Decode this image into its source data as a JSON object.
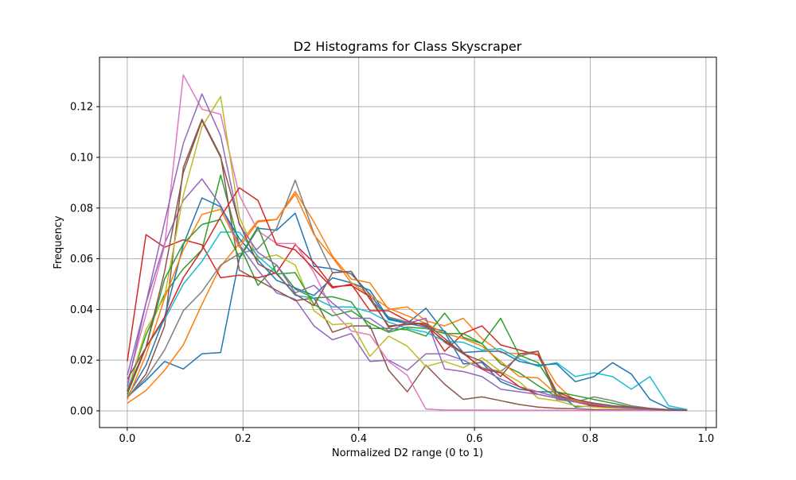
{
  "chart_data": {
    "type": "line",
    "title": "D2 Histograms for Class Skyscraper",
    "xlabel": "Normalized D2 range (0 to 1)",
    "ylabel": "Frequency",
    "xlim": [
      -0.048,
      1.018
    ],
    "ylim": [
      -0.0066,
      0.1395
    ],
    "xticks": [
      0.0,
      0.2,
      0.4,
      0.6,
      0.8,
      1.0
    ],
    "xtick_labels": [
      "0.0",
      "0.2",
      "0.4",
      "0.6",
      "0.8",
      "1.0"
    ],
    "yticks": [
      0.0,
      0.02,
      0.04,
      0.06,
      0.08,
      0.1,
      0.12
    ],
    "ytick_labels": [
      "0.00",
      "0.02",
      "0.04",
      "0.06",
      "0.08",
      "0.10",
      "0.12"
    ],
    "grid": true,
    "legend": "none",
    "x": [
      0.0,
      0.0323,
      0.0645,
      0.0968,
      0.129,
      0.1613,
      0.1935,
      0.2258,
      0.2581,
      0.2903,
      0.3226,
      0.3548,
      0.3871,
      0.4194,
      0.4516,
      0.4839,
      0.5161,
      0.5484,
      0.5806,
      0.6129,
      0.6452,
      0.6774,
      0.7097,
      0.7419,
      0.7742,
      0.8065,
      0.8387,
      0.871,
      0.9032,
      0.9355,
      0.9677
    ],
    "series": [
      {
        "color": "#1f77b4",
        "values": [
          0.0055,
          0.012,
          0.0195,
          0.0165,
          0.0225,
          0.023,
          0.06,
          0.072,
          0.0712,
          0.078,
          0.057,
          0.056,
          0.054,
          0.046,
          0.036,
          0.0345,
          0.0405,
          0.031,
          0.0185,
          0.019,
          0.0115,
          0.0085,
          0.0075,
          0.0075,
          0.0015,
          0.002,
          0.001,
          0.001,
          0.0005,
          0.0003,
          0.0002
        ]
      },
      {
        "color": "#ff7f0e",
        "values": [
          0.003,
          0.008,
          0.016,
          0.026,
          0.042,
          0.057,
          0.066,
          0.075,
          0.0755,
          0.0865,
          0.0745,
          0.061,
          0.052,
          0.0505,
          0.04,
          0.041,
          0.0355,
          0.0335,
          0.0365,
          0.0285,
          0.023,
          0.0225,
          0.0225,
          0.0105,
          0.0035,
          0.002,
          0.0015,
          0.001,
          0.0005,
          0.0003,
          0.0002
        ]
      },
      {
        "color": "#2ca02c",
        "values": [
          0.008,
          0.03,
          0.046,
          0.056,
          0.0635,
          0.093,
          0.0655,
          0.0495,
          0.0575,
          0.048,
          0.0445,
          0.045,
          0.043,
          0.0325,
          0.0325,
          0.032,
          0.0295,
          0.0385,
          0.029,
          0.0265,
          0.0185,
          0.015,
          0.01,
          0.0055,
          0.004,
          0.003,
          0.002,
          0.001,
          0.0005,
          0.0003,
          0.0002
        ]
      },
      {
        "color": "#d62728",
        "values": [
          0.0195,
          0.0695,
          0.0645,
          0.0675,
          0.0655,
          0.0525,
          0.0535,
          0.0525,
          0.0545,
          0.0655,
          0.0585,
          0.049,
          0.0495,
          0.045,
          0.033,
          0.0345,
          0.0345,
          0.0235,
          0.0305,
          0.0335,
          0.026,
          0.024,
          0.022,
          0.0075,
          0.0045,
          0.0025,
          0.0015,
          0.001,
          0.0005,
          0.0003,
          0.0002
        ]
      },
      {
        "color": "#9467bd",
        "values": [
          0.014,
          0.0425,
          0.066,
          0.083,
          0.0915,
          0.081,
          0.0655,
          0.0555,
          0.0465,
          0.044,
          0.0335,
          0.028,
          0.0305,
          0.0195,
          0.02,
          0.016,
          0.0225,
          0.0225,
          0.02,
          0.0165,
          0.0125,
          0.0095,
          0.0075,
          0.0055,
          0.0045,
          0.003,
          0.002,
          0.001,
          0.0005,
          0.0003,
          0.0002
        ]
      },
      {
        "color": "#8c564b",
        "values": [
          0.005,
          0.0145,
          0.0335,
          0.096,
          0.115,
          0.1005,
          0.0555,
          0.0515,
          0.0475,
          0.0435,
          0.0445,
          0.031,
          0.0335,
          0.0335,
          0.016,
          0.0075,
          0.018,
          0.0105,
          0.0045,
          0.0055,
          0.004,
          0.0025,
          0.0015,
          0.001,
          0.0008,
          0.0005,
          0.0004,
          0.0003,
          0.0002,
          0.0002,
          0.0001
        ]
      },
      {
        "color": "#e377c2",
        "values": [
          0.011,
          0.038,
          0.065,
          0.1325,
          0.119,
          0.117,
          0.085,
          0.071,
          0.066,
          0.066,
          0.0545,
          0.0395,
          0.0315,
          0.03,
          0.0195,
          0.014,
          0.0007,
          0.0003,
          0.0003,
          0.0003,
          0.0002,
          0.0002,
          0.0002,
          0.0002,
          0.0001,
          0.0001,
          0.0001,
          0.0001,
          0.0001,
          0.0001,
          0.0001
        ]
      },
      {
        "color": "#7f7f7f",
        "values": [
          0.0055,
          0.013,
          0.024,
          0.0395,
          0.047,
          0.0575,
          0.062,
          0.064,
          0.072,
          0.091,
          0.07,
          0.0545,
          0.055,
          0.044,
          0.037,
          0.035,
          0.034,
          0.027,
          0.0225,
          0.017,
          0.0155,
          0.0215,
          0.0235,
          0.0045,
          0.0035,
          0.0055,
          0.004,
          0.002,
          0.001,
          0.0005,
          0.0002
        ]
      },
      {
        "color": "#bcbd22",
        "values": [
          0.0075,
          0.032,
          0.045,
          0.085,
          0.112,
          0.124,
          0.0765,
          0.06,
          0.0615,
          0.0575,
          0.0395,
          0.034,
          0.0345,
          0.0215,
          0.0295,
          0.0255,
          0.0175,
          0.0195,
          0.017,
          0.021,
          0.0155,
          0.0115,
          0.005,
          0.004,
          0.002,
          0.0015,
          0.001,
          0.0008,
          0.0005,
          0.0003,
          0.0002
        ]
      },
      {
        "color": "#17becf",
        "values": [
          0.0085,
          0.025,
          0.036,
          0.05,
          0.059,
          0.0705,
          0.0705,
          0.061,
          0.0545,
          0.0455,
          0.0445,
          0.041,
          0.041,
          0.039,
          0.035,
          0.0325,
          0.031,
          0.0275,
          0.027,
          0.024,
          0.0245,
          0.0205,
          0.0175,
          0.019,
          0.0135,
          0.015,
          0.0135,
          0.0085,
          0.0135,
          0.002,
          0.0005
        ]
      },
      {
        "color": "#1f77b4",
        "values": [
          0.0055,
          0.018,
          0.037,
          0.0655,
          0.084,
          0.0805,
          0.068,
          0.0595,
          0.0515,
          0.0485,
          0.0455,
          0.0525,
          0.0505,
          0.0475,
          0.0365,
          0.0345,
          0.033,
          0.0315,
          0.023,
          0.0235,
          0.0235,
          0.0195,
          0.018,
          0.0185,
          0.0115,
          0.0135,
          0.019,
          0.0145,
          0.0045,
          0.001,
          0.0002
        ]
      },
      {
        "color": "#ff7f0e",
        "values": [
          0.0045,
          0.022,
          0.0445,
          0.0635,
          0.0775,
          0.0795,
          0.0645,
          0.0745,
          0.0755,
          0.0855,
          0.0695,
          0.0605,
          0.0505,
          0.0455,
          0.0405,
          0.0375,
          0.0345,
          0.0305,
          0.0285,
          0.0255,
          0.0195,
          0.0135,
          0.013,
          0.0065,
          0.004,
          0.003,
          0.0015,
          0.001,
          0.0005,
          0.0003,
          0.0002
        ]
      },
      {
        "color": "#2ca02c",
        "values": [
          0.0065,
          0.025,
          0.052,
          0.066,
          0.0735,
          0.0755,
          0.0605,
          0.0725,
          0.054,
          0.0545,
          0.042,
          0.0375,
          0.0395,
          0.0345,
          0.031,
          0.033,
          0.0325,
          0.0305,
          0.0305,
          0.0265,
          0.0365,
          0.022,
          0.019,
          0.0075,
          0.006,
          0.0045,
          0.003,
          0.0015,
          0.0008,
          0.0003,
          0.0002
        ]
      },
      {
        "color": "#d62728",
        "values": [
          0.0075,
          0.025,
          0.037,
          0.0525,
          0.0635,
          0.0765,
          0.088,
          0.083,
          0.0655,
          0.0635,
          0.056,
          0.0485,
          0.05,
          0.0395,
          0.0395,
          0.0355,
          0.0335,
          0.0275,
          0.023,
          0.0165,
          0.015,
          0.0095,
          0.0065,
          0.005,
          0.0035,
          0.002,
          0.0015,
          0.001,
          0.0005,
          0.0003,
          0.0002
        ]
      },
      {
        "color": "#9467bd",
        "values": [
          0.0095,
          0.0425,
          0.0745,
          0.1055,
          0.125,
          0.1085,
          0.0735,
          0.0625,
          0.0575,
          0.0465,
          0.0495,
          0.0425,
          0.0365,
          0.0365,
          0.0315,
          0.0345,
          0.0365,
          0.0165,
          0.0155,
          0.0135,
          0.0085,
          0.0075,
          0.0065,
          0.005,
          0.0035,
          0.0025,
          0.0015,
          0.001,
          0.0005,
          0.0003,
          0.0002
        ]
      },
      {
        "color": "#8c564b",
        "values": [
          0.0125,
          0.025,
          0.055,
          0.094,
          0.1145,
          0.1,
          0.074,
          0.058,
          0.054,
          0.046,
          0.0415,
          0.0545,
          0.055,
          0.044,
          0.0335,
          0.034,
          0.0345,
          0.0285,
          0.0225,
          0.0195,
          0.0135,
          0.0225,
          0.0235,
          0.006,
          0.0045,
          0.003,
          0.002,
          0.0015,
          0.0008,
          0.0003,
          0.0002
        ]
      }
    ]
  }
}
